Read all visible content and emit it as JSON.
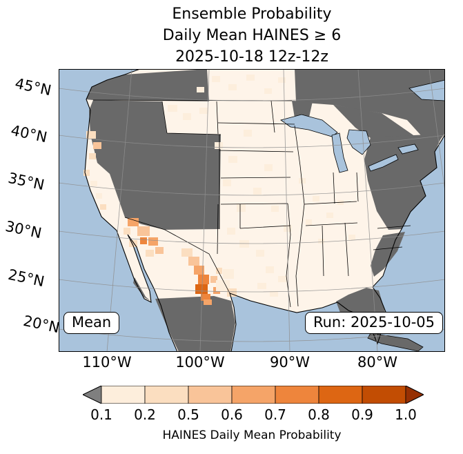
{
  "title": {
    "line1": "Ensemble Probability",
    "line2": "Daily Mean HAINES ≥ 6",
    "line3": "2025-10-18 12z-12z"
  },
  "map": {
    "lat_labels": [
      "45°N",
      "40°N",
      "35°N",
      "30°N",
      "25°N",
      "20°N"
    ],
    "lon_labels": [
      "110°W",
      "100°W",
      "90°W",
      "80°W"
    ],
    "mean_box": "Mean",
    "run_box": "Run: 2025-10-05"
  },
  "colorbar": {
    "label": "HAINES Daily Mean Probability",
    "ticks": [
      "0.1",
      "0.2",
      "0.5",
      "0.6",
      "0.7",
      "0.8",
      "0.9",
      "1.0"
    ],
    "segment_colors": [
      "#fdeedc",
      "#fbdec0",
      "#f9c499",
      "#f5a468",
      "#ee853c",
      "#dd6613",
      "#c24d03"
    ],
    "under_arrow_color": "#7f7f7f",
    "over_arrow_color": "#963003"
  },
  "colors": {
    "ocean": "#a9c3dc",
    "land": "#fef4e9",
    "masked": "#696969",
    "grid": "#8f8f8f",
    "coast": "#000000"
  }
}
